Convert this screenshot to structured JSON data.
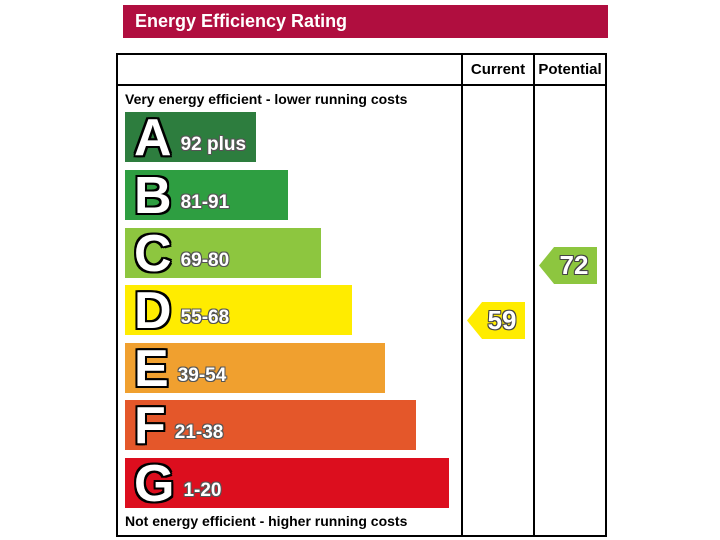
{
  "title": "Energy Efficiency Rating",
  "colors": {
    "title_bar": "#b00e3f",
    "border": "#000000"
  },
  "header": {
    "current": "Current",
    "potential": "Potential"
  },
  "captions": {
    "top": "Very energy efficient - lower running costs",
    "bottom": "Not energy efficient - higher running costs"
  },
  "bands": [
    {
      "letter": "A",
      "range": "92 plus",
      "color": "#2d7d3e"
    },
    {
      "letter": "B",
      "range": "81-91",
      "color": "#2e9e41"
    },
    {
      "letter": "C",
      "range": "69-80",
      "color": "#8dc63f"
    },
    {
      "letter": "D",
      "range": "55-68",
      "color": "#ffec00"
    },
    {
      "letter": "E",
      "range": "39-54",
      "color": "#f0a02f"
    },
    {
      "letter": "F",
      "range": "21-38",
      "color": "#e4572a"
    },
    {
      "letter": "G",
      "range": "1-20",
      "color": "#dc0e1e"
    }
  ],
  "ratings": {
    "current": {
      "label": "59",
      "value": 59,
      "band": "D",
      "color": "#ffec00"
    },
    "potential": {
      "label": "72",
      "value": 72,
      "band": "C",
      "color": "#8dc63f"
    }
  },
  "chart_data": {
    "type": "bar",
    "orientation": "horizontal",
    "title": "Energy Efficiency Rating",
    "categories": [
      "A",
      "B",
      "C",
      "D",
      "E",
      "F",
      "G"
    ],
    "band_ranges": [
      "92 plus",
      "81-91",
      "69-80",
      "55-68",
      "39-54",
      "21-38",
      "1-20"
    ],
    "band_colors": [
      "#2d7d3e",
      "#2e9e41",
      "#8dc63f",
      "#ffec00",
      "#f0a02f",
      "#e4572a",
      "#dc0e1e"
    ],
    "columns": [
      "Current",
      "Potential"
    ],
    "current_rating": 59,
    "current_band": "D",
    "potential_rating": 72,
    "potential_band": "C",
    "notes": [
      "Very energy efficient - lower running costs",
      "Not energy efficient - higher running costs"
    ]
  }
}
